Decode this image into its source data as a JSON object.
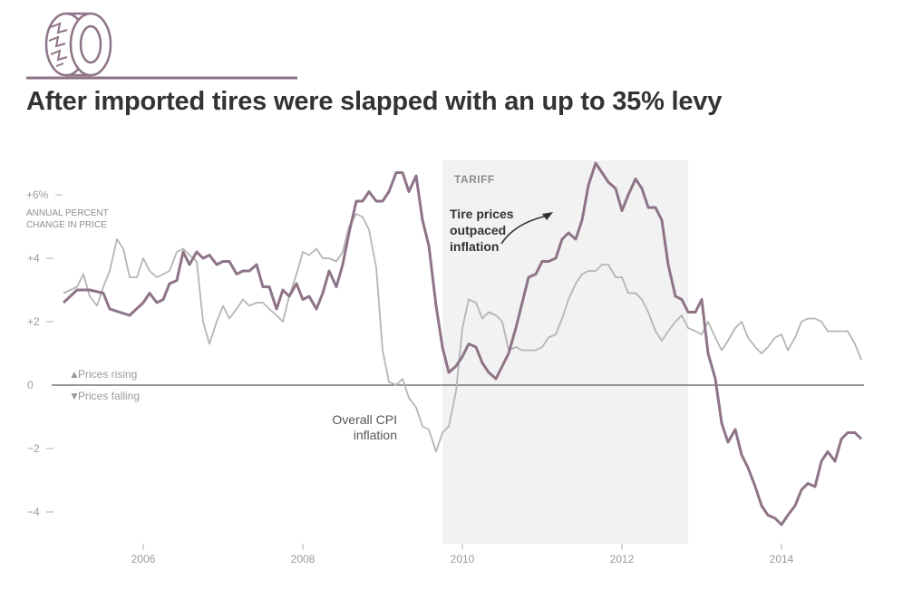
{
  "title": "After imported tires were slapped with an up to 35% levy",
  "icon": "tire-icon",
  "colors": {
    "tire_line": "#8e7486",
    "cpi_line": "#b5b5b5",
    "tariff_band": "#f2f2f2",
    "zero_line": "#333333",
    "rule": "#8e7486"
  },
  "annotations": {
    "tariff": "TARIFF",
    "tire_note": [
      "Tire prices",
      "outpaced",
      "inflation"
    ],
    "cpi_note": [
      "Overall CPI",
      "inflation"
    ],
    "rising": "Prices rising",
    "falling": "Prices falling",
    "ylabel": [
      "ANNUAL PERCENT",
      "CHANGE IN PRICE"
    ]
  },
  "chart_data": {
    "type": "line",
    "title": "After imported tires were slapped with an up to 35% levy",
    "ylabel": "ANNUAL PERCENT CHANGE IN PRICE",
    "xlim": [
      2004.8,
      2015.1
    ],
    "ylim": [
      -5,
      7.3
    ],
    "xticks": [
      {
        "value": 2006,
        "label": "2006"
      },
      {
        "value": 2008,
        "label": "2008"
      },
      {
        "value": 2010,
        "label": "2010"
      },
      {
        "value": 2012,
        "label": "2012"
      },
      {
        "value": 2014,
        "label": "2014"
      }
    ],
    "yticks": [
      {
        "value": 6,
        "label": "+6%"
      },
      {
        "value": 4,
        "label": "+4"
      },
      {
        "value": 2,
        "label": "+2"
      },
      {
        "value": 0,
        "label": "0"
      },
      {
        "value": -2,
        "label": "−2"
      },
      {
        "value": -4,
        "label": "−4"
      }
    ],
    "shaded_period": {
      "label": "TARIFF",
      "start": 2009.75,
      "end": 2012.83
    },
    "series": [
      {
        "name": "Tire prices",
        "points": [
          [
            2005,
            2.6
          ],
          [
            2005.17,
            3.0
          ],
          [
            2005.33,
            3.0
          ],
          [
            2005.5,
            2.9
          ],
          [
            2005.58,
            2.4
          ],
          [
            2005.83,
            2.2
          ],
          [
            2006,
            2.6
          ],
          [
            2006.08,
            2.9
          ],
          [
            2006.17,
            2.6
          ],
          [
            2006.25,
            2.7
          ],
          [
            2006.33,
            3.2
          ],
          [
            2006.42,
            3.3
          ],
          [
            2006.5,
            4.2
          ],
          [
            2006.58,
            3.8
          ],
          [
            2006.67,
            4.2
          ],
          [
            2006.75,
            4.0
          ],
          [
            2006.83,
            4.1
          ],
          [
            2006.92,
            3.8
          ],
          [
            2007,
            3.9
          ],
          [
            2007.08,
            3.9
          ],
          [
            2007.17,
            3.5
          ],
          [
            2007.25,
            3.6
          ],
          [
            2007.33,
            3.6
          ],
          [
            2007.42,
            3.8
          ],
          [
            2007.5,
            3.1
          ],
          [
            2007.58,
            3.1
          ],
          [
            2007.67,
            2.4
          ],
          [
            2007.75,
            3.0
          ],
          [
            2007.83,
            2.8
          ],
          [
            2007.92,
            3.2
          ],
          [
            2008,
            2.7
          ],
          [
            2008.08,
            2.8
          ],
          [
            2008.17,
            2.4
          ],
          [
            2008.25,
            2.9
          ],
          [
            2008.33,
            3.6
          ],
          [
            2008.42,
            3.1
          ],
          [
            2008.5,
            3.8
          ],
          [
            2008.58,
            4.8
          ],
          [
            2008.67,
            5.8
          ],
          [
            2008.75,
            5.8
          ],
          [
            2008.83,
            6.1
          ],
          [
            2008.92,
            5.8
          ],
          [
            2009,
            5.8
          ],
          [
            2009.08,
            6.1
          ],
          [
            2009.17,
            6.7
          ],
          [
            2009.25,
            6.7
          ],
          [
            2009.33,
            6.1
          ],
          [
            2009.42,
            6.6
          ],
          [
            2009.5,
            5.2
          ],
          [
            2009.58,
            4.4
          ],
          [
            2009.67,
            2.5
          ],
          [
            2009.75,
            1.2
          ],
          [
            2009.83,
            0.4
          ],
          [
            2009.92,
            0.6
          ],
          [
            2010,
            0.9
          ],
          [
            2010.08,
            1.3
          ],
          [
            2010.17,
            1.2
          ],
          [
            2010.25,
            0.7
          ],
          [
            2010.33,
            0.4
          ],
          [
            2010.42,
            0.2
          ],
          [
            2010.5,
            0.6
          ],
          [
            2010.58,
            1.0
          ],
          [
            2010.67,
            1.8
          ],
          [
            2010.75,
            2.6
          ],
          [
            2010.83,
            3.4
          ],
          [
            2010.92,
            3.5
          ],
          [
            2011,
            3.9
          ],
          [
            2011.08,
            3.9
          ],
          [
            2011.17,
            4.0
          ],
          [
            2011.25,
            4.6
          ],
          [
            2011.33,
            4.8
          ],
          [
            2011.42,
            4.6
          ],
          [
            2011.5,
            5.2
          ],
          [
            2011.58,
            6.3
          ],
          [
            2011.67,
            7.0
          ],
          [
            2011.75,
            6.7
          ],
          [
            2011.83,
            6.4
          ],
          [
            2011.92,
            6.2
          ],
          [
            2012,
            5.5
          ],
          [
            2012.08,
            6.0
          ],
          [
            2012.17,
            6.5
          ],
          [
            2012.25,
            6.2
          ],
          [
            2012.33,
            5.6
          ],
          [
            2012.42,
            5.6
          ],
          [
            2012.5,
            5.2
          ],
          [
            2012.58,
            3.8
          ],
          [
            2012.67,
            2.8
          ],
          [
            2012.75,
            2.7
          ],
          [
            2012.83,
            2.3
          ],
          [
            2012.92,
            2.3
          ],
          [
            2013,
            2.7
          ],
          [
            2013.08,
            1.0
          ],
          [
            2013.17,
            0.2
          ],
          [
            2013.25,
            -1.2
          ],
          [
            2013.33,
            -1.8
          ],
          [
            2013.42,
            -1.4
          ],
          [
            2013.5,
            -2.2
          ],
          [
            2013.58,
            -2.6
          ],
          [
            2013.67,
            -3.2
          ],
          [
            2013.75,
            -3.8
          ],
          [
            2013.83,
            -4.1
          ],
          [
            2013.92,
            -4.2
          ],
          [
            2014,
            -4.4
          ],
          [
            2014.08,
            -4.1
          ],
          [
            2014.17,
            -3.8
          ],
          [
            2014.25,
            -3.3
          ],
          [
            2014.33,
            -3.1
          ],
          [
            2014.42,
            -3.2
          ],
          [
            2014.5,
            -2.4
          ],
          [
            2014.58,
            -2.1
          ],
          [
            2014.67,
            -2.4
          ],
          [
            2014.75,
            -1.7
          ],
          [
            2014.83,
            -1.5
          ],
          [
            2014.92,
            -1.5
          ],
          [
            2015,
            -1.7
          ]
        ]
      },
      {
        "name": "Overall CPI inflation",
        "points": [
          [
            2005,
            2.9
          ],
          [
            2005.17,
            3.1
          ],
          [
            2005.25,
            3.5
          ],
          [
            2005.33,
            2.8
          ],
          [
            2005.42,
            2.5
          ],
          [
            2005.5,
            3.1
          ],
          [
            2005.58,
            3.6
          ],
          [
            2005.67,
            4.6
          ],
          [
            2005.75,
            4.3
          ],
          [
            2005.83,
            3.4
          ],
          [
            2005.92,
            3.4
          ],
          [
            2006,
            4.0
          ],
          [
            2006.08,
            3.6
          ],
          [
            2006.17,
            3.4
          ],
          [
            2006.25,
            3.5
          ],
          [
            2006.33,
            3.6
          ],
          [
            2006.42,
            4.2
          ],
          [
            2006.5,
            4.3
          ],
          [
            2006.58,
            4.1
          ],
          [
            2006.67,
            3.9
          ],
          [
            2006.75,
            2.0
          ],
          [
            2006.83,
            1.3
          ],
          [
            2006.92,
            2.0
          ],
          [
            2007,
            2.5
          ],
          [
            2007.08,
            2.1
          ],
          [
            2007.17,
            2.4
          ],
          [
            2007.25,
            2.7
          ],
          [
            2007.33,
            2.5
          ],
          [
            2007.42,
            2.6
          ],
          [
            2007.5,
            2.6
          ],
          [
            2007.58,
            2.4
          ],
          [
            2007.67,
            2.2
          ],
          [
            2007.75,
            2.0
          ],
          [
            2007.83,
            2.8
          ],
          [
            2007.92,
            3.5
          ],
          [
            2008,
            4.2
          ],
          [
            2008.08,
            4.1
          ],
          [
            2008.17,
            4.3
          ],
          [
            2008.25,
            4.0
          ],
          [
            2008.33,
            4.0
          ],
          [
            2008.42,
            3.9
          ],
          [
            2008.5,
            4.2
          ],
          [
            2008.58,
            5.0
          ],
          [
            2008.67,
            5.4
          ],
          [
            2008.75,
            5.3
          ],
          [
            2008.83,
            4.9
          ],
          [
            2008.92,
            3.7
          ],
          [
            2009,
            1.1
          ],
          [
            2009.08,
            0.1
          ],
          [
            2009.17,
            0.0
          ],
          [
            2009.25,
            0.2
          ],
          [
            2009.33,
            -0.4
          ],
          [
            2009.42,
            -0.7
          ],
          [
            2009.5,
            -1.3
          ],
          [
            2009.58,
            -1.4
          ],
          [
            2009.67,
            -2.1
          ],
          [
            2009.75,
            -1.5
          ],
          [
            2009.83,
            -1.3
          ],
          [
            2009.92,
            -0.2
          ],
          [
            2010,
            1.8
          ],
          [
            2010.08,
            2.7
          ],
          [
            2010.17,
            2.6
          ],
          [
            2010.25,
            2.1
          ],
          [
            2010.33,
            2.3
          ],
          [
            2010.42,
            2.2
          ],
          [
            2010.5,
            2.0
          ],
          [
            2010.58,
            1.1
          ],
          [
            2010.67,
            1.2
          ],
          [
            2010.75,
            1.1
          ],
          [
            2010.83,
            1.1
          ],
          [
            2010.92,
            1.1
          ],
          [
            2011,
            1.2
          ],
          [
            2011.08,
            1.5
          ],
          [
            2011.17,
            1.6
          ],
          [
            2011.25,
            2.1
          ],
          [
            2011.33,
            2.7
          ],
          [
            2011.42,
            3.2
          ],
          [
            2011.5,
            3.5
          ],
          [
            2011.58,
            3.6
          ],
          [
            2011.67,
            3.6
          ],
          [
            2011.75,
            3.8
          ],
          [
            2011.83,
            3.8
          ],
          [
            2011.92,
            3.4
          ],
          [
            2012,
            3.4
          ],
          [
            2012.08,
            2.9
          ],
          [
            2012.17,
            2.9
          ],
          [
            2012.25,
            2.7
          ],
          [
            2012.33,
            2.3
          ],
          [
            2012.42,
            1.7
          ],
          [
            2012.5,
            1.4
          ],
          [
            2012.58,
            1.7
          ],
          [
            2012.67,
            2.0
          ],
          [
            2012.75,
            2.2
          ],
          [
            2012.83,
            1.8
          ],
          [
            2012.92,
            1.7
          ],
          [
            2013,
            1.6
          ],
          [
            2013.08,
            2.0
          ],
          [
            2013.17,
            1.5
          ],
          [
            2013.25,
            1.1
          ],
          [
            2013.33,
            1.4
          ],
          [
            2013.42,
            1.8
          ],
          [
            2013.5,
            2.0
          ],
          [
            2013.58,
            1.5
          ],
          [
            2013.67,
            1.2
          ],
          [
            2013.75,
            1.0
          ],
          [
            2013.83,
            1.2
          ],
          [
            2013.92,
            1.5
          ],
          [
            2014,
            1.6
          ],
          [
            2014.08,
            1.1
          ],
          [
            2014.17,
            1.5
          ],
          [
            2014.25,
            2.0
          ],
          [
            2014.33,
            2.1
          ],
          [
            2014.42,
            2.1
          ],
          [
            2014.5,
            2.0
          ],
          [
            2014.58,
            1.7
          ],
          [
            2014.67,
            1.7
          ],
          [
            2014.75,
            1.7
          ],
          [
            2014.83,
            1.7
          ],
          [
            2014.92,
            1.3
          ],
          [
            2015,
            0.8
          ]
        ]
      }
    ]
  }
}
